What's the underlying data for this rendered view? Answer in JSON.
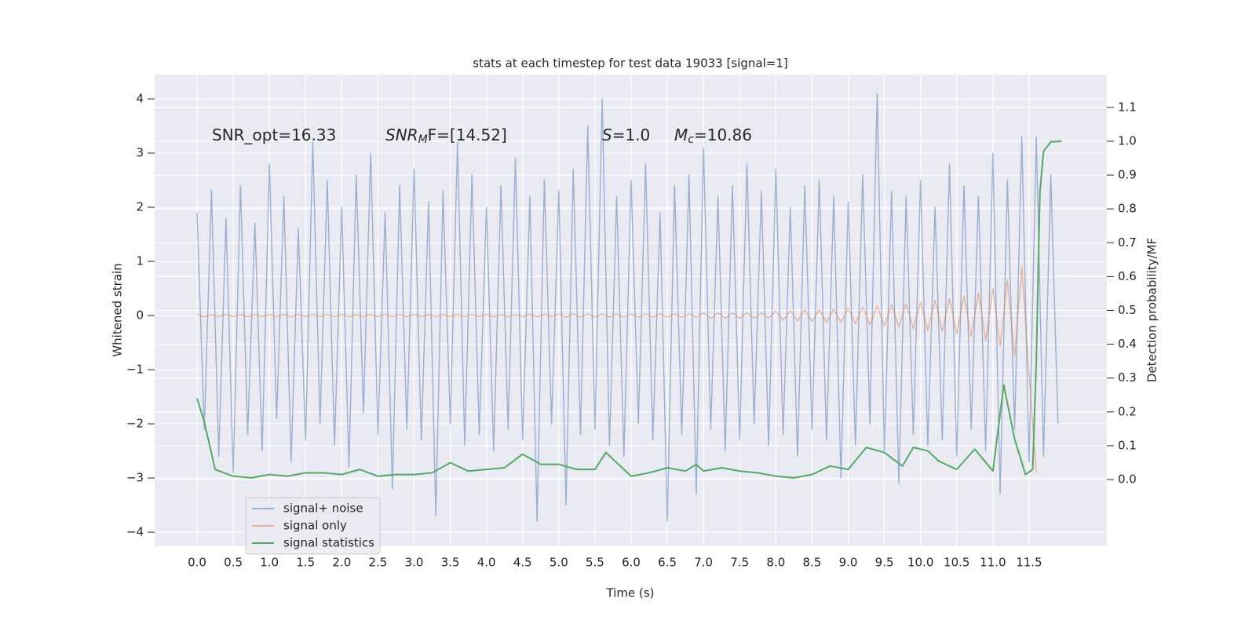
{
  "chart_data": {
    "type": "line",
    "title": "stats at each timestep for test data 19033 [signal=1]",
    "xlabel": "Time (s)",
    "ylabel": "Whitened strain",
    "y2label": "Detection probability/MF",
    "annotations": [
      {
        "parts": [
          "SNR_opt=16.33"
        ]
      },
      {
        "parts": [
          "SNR",
          "M",
          "F=[14.52]"
        ]
      },
      {
        "parts": [
          "S",
          "=1.0"
        ]
      },
      {
        "parts": [
          "M",
          "c",
          "=10.86"
        ]
      }
    ],
    "xlim": [
      -0.586,
      12.575
    ],
    "ylim": [
      -4.26,
      4.45
    ],
    "y2lim": [
      -0.197,
      1.197
    ],
    "xticks": [
      {
        "value": 0,
        "label": "0.0"
      },
      0.5,
      {
        "value": 1,
        "label": "1.0"
      },
      1.5,
      {
        "value": 2,
        "label": "2.0"
      },
      2.5,
      {
        "value": 3,
        "label": "3.0"
      },
      3.5,
      {
        "value": 4,
        "label": "4.0"
      },
      4.5,
      {
        "value": 5,
        "label": "5.0"
      },
      5.5,
      {
        "value": 6,
        "label": "6.0"
      },
      6.5,
      {
        "value": 7,
        "label": "7.0"
      },
      7.5,
      {
        "value": 8,
        "label": "8.0"
      },
      8.5,
      {
        "value": 9,
        "label": "9.0"
      },
      9.5,
      {
        "value": 10,
        "label": "10.0"
      },
      10.5,
      {
        "value": 11,
        "label": "11.0"
      },
      11.5
    ],
    "yticks": [
      {
        "value": -4,
        "label": "−4"
      },
      {
        "value": -3,
        "label": "−3"
      },
      {
        "value": -2,
        "label": "−2"
      },
      {
        "value": -1,
        "label": "−1"
      },
      0,
      1,
      2,
      3,
      4
    ],
    "y2ticks": [
      {
        "value": 0,
        "label": "0.0"
      },
      0.1,
      0.2,
      0.3,
      0.4,
      0.5,
      0.6,
      0.7,
      0.8,
      0.9,
      {
        "value": 1,
        "label": "1.0"
      },
      1.1
    ],
    "grid": true,
    "legend": "lower left",
    "series": [
      {
        "name": "signal+ noise",
        "color": "#4c72b0",
        "x": [
          0,
          0.1,
          0.2,
          0.3,
          0.4,
          0.5,
          0.6,
          0.7,
          0.8,
          0.9,
          1,
          1.1,
          1.2,
          1.3,
          1.4,
          1.5,
          1.6,
          1.7,
          1.8,
          1.9,
          2,
          2.1,
          2.2,
          2.3,
          2.4,
          2.5,
          2.6,
          2.7,
          2.8,
          2.9,
          3,
          3.1,
          3.2,
          3.3,
          3.4,
          3.5,
          3.6,
          3.7,
          3.8,
          3.9,
          4,
          4.1,
          4.2,
          4.3,
          4.4,
          4.5,
          4.6,
          4.7,
          4.8,
          4.9,
          5,
          5.1,
          5.2,
          5.3,
          5.4,
          5.5,
          5.6,
          5.7,
          5.8,
          5.9,
          6,
          6.1,
          6.2,
          6.3,
          6.4,
          6.5,
          6.6,
          6.7,
          6.8,
          6.9,
          7,
          7.1,
          7.2,
          7.3,
          7.4,
          7.5,
          7.6,
          7.7,
          7.8,
          7.9,
          8,
          8.1,
          8.2,
          8.3,
          8.4,
          8.5,
          8.6,
          8.7,
          8.8,
          8.9,
          9,
          9.1,
          9.2,
          9.3,
          9.4,
          9.5,
          9.6,
          9.7,
          9.8,
          9.9,
          10,
          10.1,
          10.2,
          10.3,
          10.4,
          10.5,
          10.6,
          10.7,
          10.8,
          10.9,
          11,
          11.1,
          11.2,
          11.3,
          11.4,
          11.5,
          11.6,
          11.7,
          11.8,
          11.9
        ],
        "values": [
          1.9,
          -2.1,
          2.3,
          -2.6,
          1.8,
          -2.9,
          2.4,
          -2.2,
          1.7,
          -2.5,
          2.8,
          -1.9,
          2.2,
          -2.7,
          1.6,
          -2.3,
          3.2,
          -2.0,
          2.5,
          -2.4,
          2.0,
          -2.8,
          2.6,
          -1.8,
          3.0,
          -2.2,
          1.9,
          -3.2,
          2.4,
          -2.1,
          2.7,
          -2.3,
          2.1,
          -3.7,
          2.3,
          -2.0,
          3.2,
          -2.4,
          2.6,
          -2.2,
          2.0,
          -2.5,
          2.4,
          -2.1,
          2.9,
          -2.3,
          2.2,
          -3.8,
          2.5,
          -2.0,
          2.3,
          -3.5,
          2.7,
          -2.2,
          3.5,
          -2.1,
          4.0,
          -2.4,
          2.2,
          -2.6,
          2.5,
          -2.0,
          2.8,
          -2.3,
          1.9,
          -3.8,
          2.4,
          -2.2,
          2.6,
          -3.3,
          3.1,
          -2.1,
          2.2,
          -2.5,
          2.4,
          -2.3,
          2.8,
          -2.0,
          2.3,
          -2.4,
          2.7,
          -2.2,
          2.0,
          -2.6,
          2.4,
          -2.1,
          2.5,
          -2.3,
          2.2,
          -3.0,
          2.1,
          -2.4,
          2.6,
          -2.0,
          4.1,
          -2.5,
          2.3,
          -3.1,
          2.2,
          -2.2,
          2.5,
          -2.4,
          2.0,
          -2.3,
          2.8,
          -2.6,
          2.4,
          -2.1,
          2.2,
          -2.5,
          3.0,
          -3.3,
          2.5,
          -2.1,
          3.3,
          -2.7,
          3.3,
          -2.6,
          2.6,
          -2.0
        ]
      },
      {
        "name": "signal only",
        "color": "#dd8452",
        "x": [
          0,
          0.1,
          0.2,
          0.3,
          0.4,
          0.5,
          0.6,
          0.7,
          0.8,
          0.9,
          1,
          1.1,
          1.2,
          1.3,
          1.4,
          1.5,
          1.6,
          1.7,
          1.8,
          1.9,
          2,
          2.1,
          2.2,
          2.3,
          2.4,
          2.5,
          2.6,
          2.7,
          2.8,
          2.9,
          3,
          3.1,
          3.2,
          3.3,
          3.4,
          3.5,
          3.6,
          3.7,
          3.8,
          3.9,
          4,
          4.1,
          4.2,
          4.3,
          4.4,
          4.5,
          4.6,
          4.7,
          4.8,
          4.9,
          5,
          5.1,
          5.2,
          5.3,
          5.4,
          5.5,
          5.6,
          5.7,
          5.8,
          5.9,
          6,
          6.1,
          6.2,
          6.3,
          6.4,
          6.5,
          6.6,
          6.7,
          6.8,
          6.9,
          7,
          7.1,
          7.2,
          7.3,
          7.4,
          7.5,
          7.6,
          7.7,
          7.8,
          7.9,
          8,
          8.1,
          8.2,
          8.3,
          8.4,
          8.5,
          8.6,
          8.7,
          8.8,
          8.9,
          9,
          9.1,
          9.2,
          9.3,
          9.4,
          9.5,
          9.6,
          9.7,
          9.8,
          9.9,
          10,
          10.1,
          10.2,
          10.3,
          10.4,
          10.5,
          10.6,
          10.7,
          10.8,
          10.9,
          11,
          11.1,
          11.2,
          11.3,
          11.4,
          11.5,
          11.6,
          11.7,
          11.8,
          11.9
        ],
        "values": [
          0.02,
          -0.02,
          0.02,
          -0.02,
          0.02,
          -0.02,
          0.02,
          -0.02,
          0.02,
          -0.02,
          0.02,
          -0.02,
          0.02,
          -0.02,
          0.02,
          -0.02,
          0.02,
          -0.02,
          0.02,
          -0.02,
          0.02,
          -0.02,
          0.02,
          -0.02,
          0.02,
          -0.02,
          0.02,
          -0.02,
          0.02,
          -0.02,
          0.02,
          -0.02,
          0.02,
          -0.02,
          0.02,
          -0.02,
          0.02,
          -0.02,
          0.02,
          -0.02,
          0.02,
          -0.02,
          0.02,
          -0.02,
          0.02,
          -0.02,
          0.02,
          -0.02,
          0.02,
          -0.02,
          0.03,
          -0.03,
          0.03,
          -0.03,
          0.03,
          -0.03,
          0.03,
          -0.03,
          0.03,
          -0.03,
          0.03,
          -0.03,
          0.03,
          -0.03,
          0.03,
          -0.03,
          0.03,
          -0.03,
          0.03,
          -0.03,
          0.05,
          -0.05,
          0.05,
          -0.05,
          0.05,
          -0.05,
          0.05,
          -0.05,
          0.05,
          -0.05,
          0.08,
          -0.09,
          0.09,
          -0.1,
          0.1,
          -0.11,
          0.11,
          -0.12,
          0.12,
          -0.13,
          0.14,
          -0.15,
          0.16,
          -0.17,
          0.18,
          -0.19,
          0.2,
          -0.21,
          0.22,
          -0.24,
          0.25,
          -0.27,
          0.28,
          -0.3,
          0.32,
          -0.34,
          0.36,
          -0.39,
          0.42,
          -0.46,
          0.5,
          -0.56,
          0.65,
          -0.75,
          0.9,
          -1.1,
          -2.9,
          null,
          null,
          null
        ]
      },
      {
        "name": "signal statistics",
        "color": "#55a868",
        "axis": "y2",
        "x": [
          0,
          0.1,
          0.25,
          0.5,
          0.75,
          1,
          1.25,
          1.5,
          1.75,
          2,
          2.25,
          2.5,
          2.75,
          3,
          3.25,
          3.5,
          3.75,
          4,
          4.25,
          4.5,
          4.75,
          5,
          5.25,
          5.5,
          5.65,
          5.75,
          6,
          6.25,
          6.5,
          6.75,
          6.9,
          7,
          7.25,
          7.5,
          7.75,
          8,
          8.25,
          8.5,
          8.75,
          9,
          9.25,
          9.5,
          9.75,
          9.9,
          10.1,
          10.25,
          10.5,
          10.75,
          11,
          11.15,
          11.3,
          11.45,
          11.55,
          11.6,
          11.65,
          11.7,
          11.8,
          11.95
        ],
        "values": [
          0.24,
          0.17,
          0.03,
          0.01,
          0.005,
          0.015,
          0.01,
          0.02,
          0.02,
          0.015,
          0.03,
          0.01,
          0.015,
          0.015,
          0.02,
          0.05,
          0.025,
          0.03,
          0.035,
          0.075,
          0.045,
          0.045,
          0.03,
          0.03,
          0.08,
          0.06,
          0.01,
          0.02,
          0.035,
          0.025,
          0.045,
          0.025,
          0.035,
          0.025,
          0.02,
          0.01,
          0.005,
          0.015,
          0.04,
          0.03,
          0.095,
          0.08,
          0.04,
          0.095,
          0.085,
          0.055,
          0.03,
          0.09,
          0.025,
          0.28,
          0.12,
          0.015,
          0.03,
          0.35,
          0.85,
          0.97,
          0.998,
          1.0
        ]
      }
    ]
  }
}
